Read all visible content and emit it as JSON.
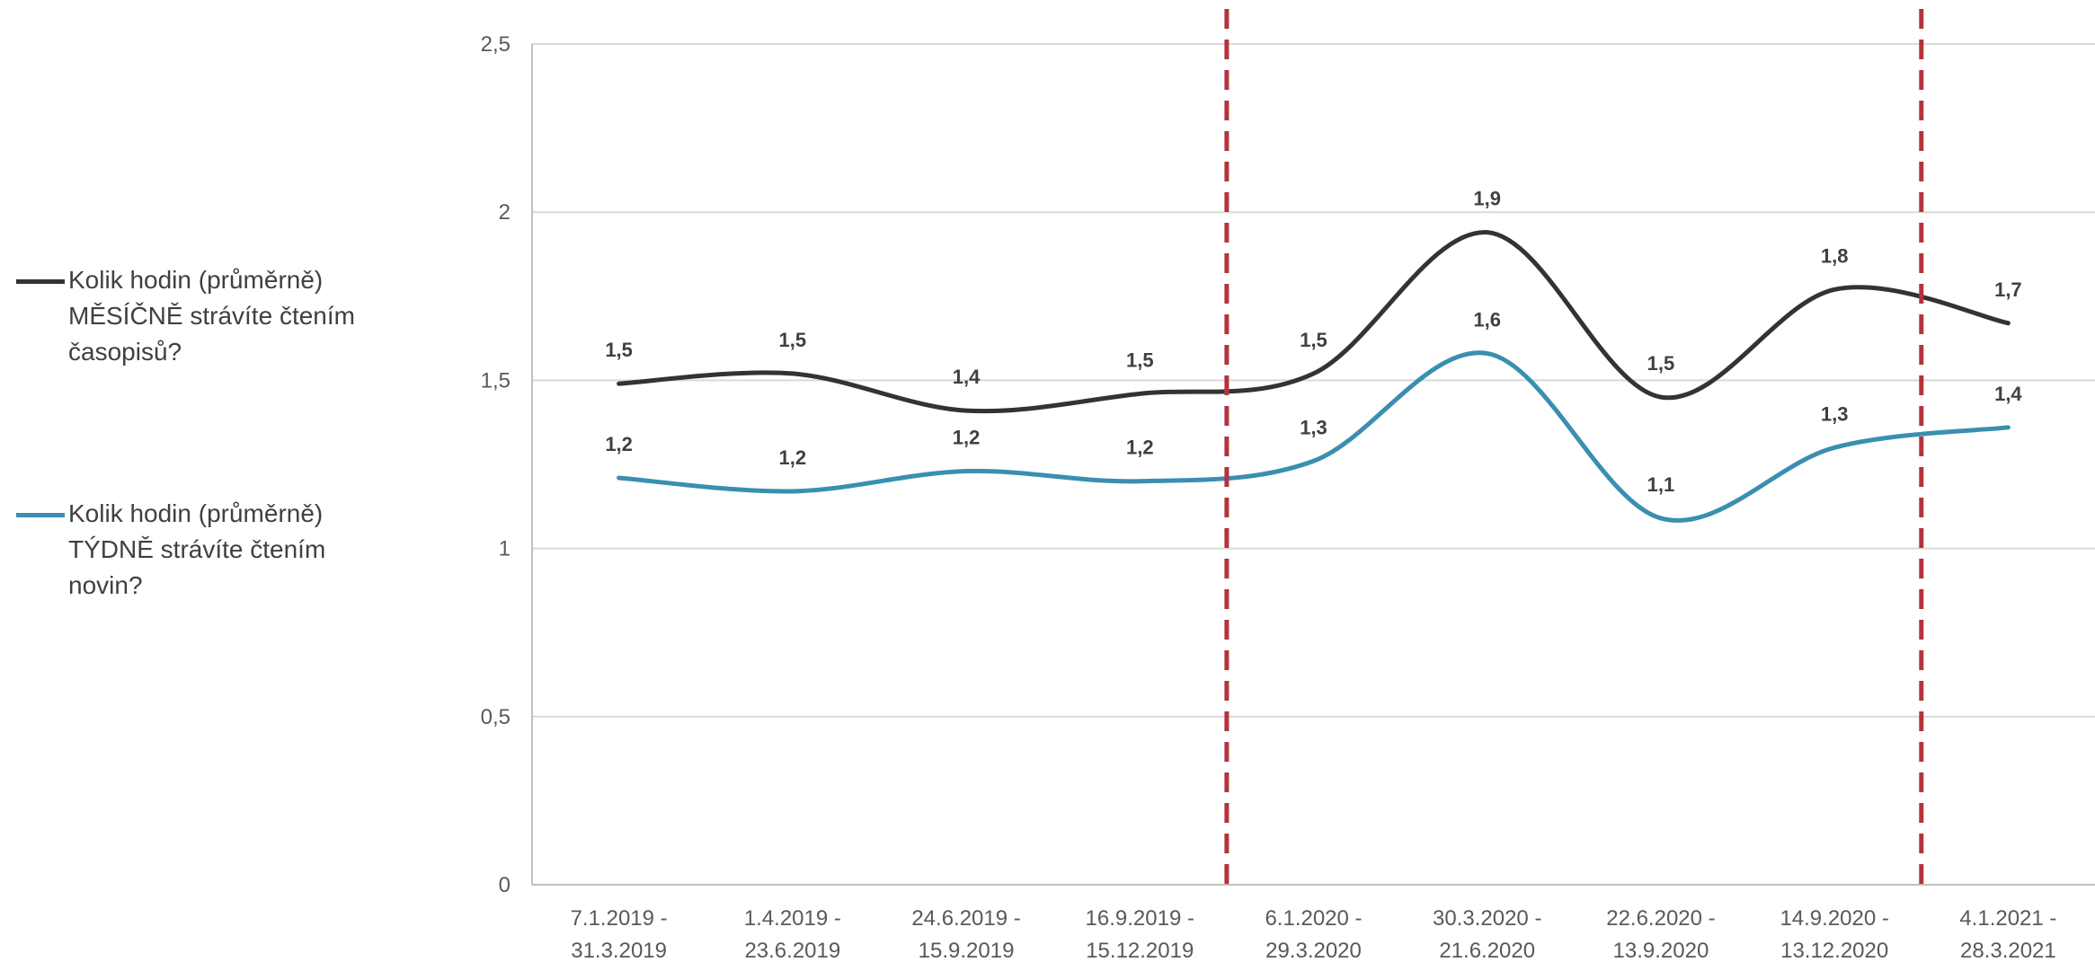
{
  "chart_data": {
    "type": "line",
    "categories": [
      [
        "7.1.2019 -",
        "31.3.2019"
      ],
      [
        "1.4.2019 -",
        "23.6.2019"
      ],
      [
        "24.6.2019 -",
        "15.9.2019"
      ],
      [
        "16.9.2019 -",
        "15.12.2019"
      ],
      [
        "6.1.2020 -",
        "29.3.2020"
      ],
      [
        "30.3.2020 -",
        "21.6.2020"
      ],
      [
        "22.6.2020 -",
        "13.9.2020"
      ],
      [
        "14.9.2020 -",
        "13.12.2020"
      ],
      [
        "4.1.2021 -",
        "28.3.2021"
      ]
    ],
    "ylim": [
      0,
      2.5
    ],
    "yticks": [
      "0",
      "0,5",
      "1",
      "1,5",
      "2",
      "2,5"
    ],
    "grid": true,
    "legend_position": "left",
    "series": [
      {
        "name": "Kolik hodin (průměrně) MĚSÍČNĚ strávíte čtením časopisů?",
        "color": "#333333",
        "values": [
          1.49,
          1.52,
          1.41,
          1.46,
          1.52,
          1.94,
          1.45,
          1.77,
          1.67
        ],
        "labels": [
          "1,5",
          "1,5",
          "1,4",
          "1,5",
          "1,5",
          "1,9",
          "1,5",
          "1,8",
          "1,7"
        ]
      },
      {
        "name": "Kolik hodin (průměrně) TÝDNĚ strávíte čtením novin?",
        "color": "#3a8fb0",
        "values": [
          1.21,
          1.17,
          1.23,
          1.2,
          1.26,
          1.58,
          1.09,
          1.3,
          1.36
        ],
        "labels": [
          "1,2",
          "1,2",
          "1,2",
          "1,2",
          "1,3",
          "1,6",
          "1,1",
          "1,3",
          "1,4"
        ]
      }
    ],
    "reference_lines": {
      "color": "#b5323c",
      "style": "dashed",
      "after_categories": [
        3,
        7
      ]
    }
  },
  "legend": {
    "items": [
      {
        "lines": [
          "Kolik hodin (průměrně)",
          "MĚSÍČNĚ strávíte čtením",
          "časopisů?"
        ],
        "color": "#333333"
      },
      {
        "lines": [
          "Kolik hodin (průměrně)",
          "TÝDNĚ strávíte čtením",
          "novin?"
        ],
        "color": "#3a8fb0"
      }
    ]
  }
}
